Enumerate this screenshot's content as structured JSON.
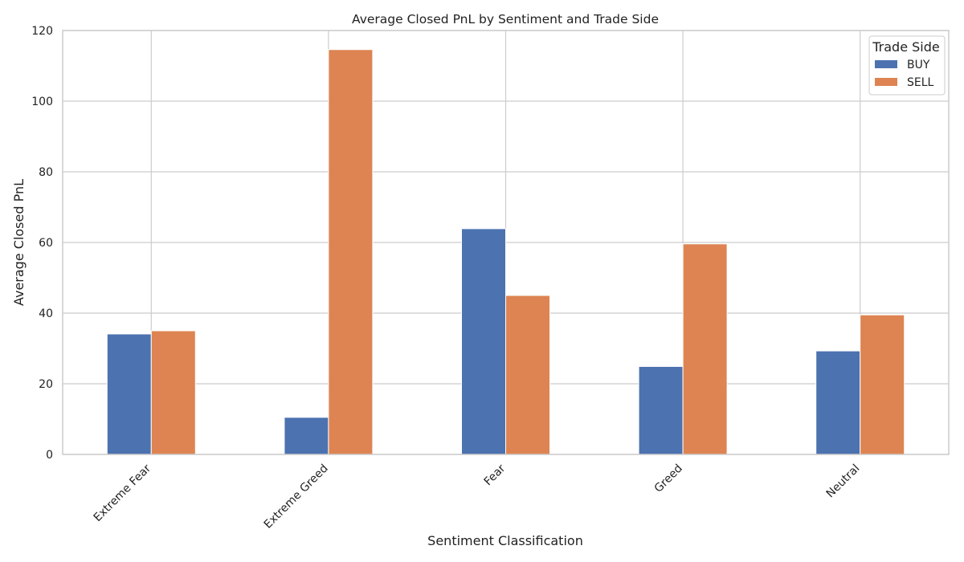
{
  "chart_data": {
    "type": "bar",
    "title": "Average Closed PnL by Sentiment and Trade Side",
    "xlabel": "Sentiment Classification",
    "ylabel": "Average Closed PnL",
    "categories": [
      "Extreme Fear",
      "Extreme Greed",
      "Fear",
      "Greed",
      "Neutral"
    ],
    "series": [
      {
        "name": "BUY",
        "color": "#4c72b0",
        "values": [
          34.1,
          10.5,
          63.9,
          24.9,
          29.3
        ]
      },
      {
        "name": "SELL",
        "color": "#dd8452",
        "values": [
          35.0,
          114.6,
          45.0,
          59.6,
          39.5
        ]
      }
    ],
    "ylim": [
      0,
      120
    ],
    "yticks": [
      0,
      20,
      40,
      60,
      80,
      100,
      120
    ],
    "grid": true,
    "legend": {
      "title": "Trade Side",
      "placement": "top-right"
    },
    "colors": {
      "grid": "#cccccc",
      "spine": "#cccccc",
      "text": "#222222"
    }
  }
}
